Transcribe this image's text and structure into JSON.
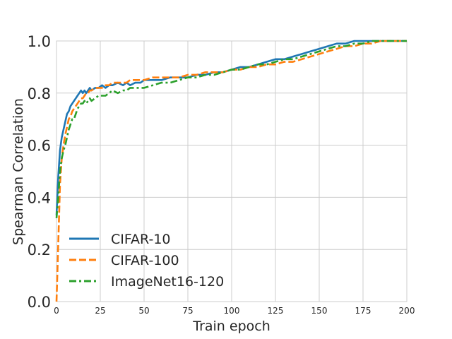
{
  "chart_data": {
    "type": "line",
    "title": "",
    "xlabel": "Train epoch",
    "ylabel": "Spearman Correlation",
    "xlim": [
      0,
      200
    ],
    "ylim": [
      0,
      1.0
    ],
    "x_ticks": [
      "0",
      "25",
      "50",
      "75",
      "100",
      "125",
      "150",
      "175",
      "200"
    ],
    "y_ticks": [
      "0.0",
      "0.2",
      "0.4",
      "0.6",
      "0.8",
      "1.0"
    ],
    "grid": true,
    "legend_position": "lower-left",
    "series": [
      {
        "name": "CIFAR-10",
        "color": "#1f77b4",
        "dash": "solid",
        "points": [
          [
            0,
            0.33
          ],
          [
            1,
            0.48
          ],
          [
            2,
            0.58
          ],
          [
            3,
            0.63
          ],
          [
            4,
            0.66
          ],
          [
            5,
            0.69
          ],
          [
            6,
            0.72
          ],
          [
            7,
            0.73
          ],
          [
            8,
            0.75
          ],
          [
            9,
            0.76
          ],
          [
            10,
            0.77
          ],
          [
            11,
            0.78
          ],
          [
            12,
            0.79
          ],
          [
            13,
            0.8
          ],
          [
            14,
            0.81
          ],
          [
            15,
            0.8
          ],
          [
            16,
            0.81
          ],
          [
            17,
            0.8
          ],
          [
            18,
            0.81
          ],
          [
            19,
            0.82
          ],
          [
            20,
            0.81
          ],
          [
            22,
            0.82
          ],
          [
            24,
            0.82
          ],
          [
            26,
            0.83
          ],
          [
            28,
            0.82
          ],
          [
            30,
            0.83
          ],
          [
            32,
            0.83
          ],
          [
            35,
            0.84
          ],
          [
            38,
            0.83
          ],
          [
            40,
            0.84
          ],
          [
            42,
            0.83
          ],
          [
            45,
            0.84
          ],
          [
            48,
            0.84
          ],
          [
            50,
            0.85
          ],
          [
            55,
            0.85
          ],
          [
            60,
            0.85
          ],
          [
            65,
            0.86
          ],
          [
            70,
            0.86
          ],
          [
            75,
            0.86
          ],
          [
            80,
            0.87
          ],
          [
            85,
            0.87
          ],
          [
            90,
            0.88
          ],
          [
            95,
            0.88
          ],
          [
            100,
            0.89
          ],
          [
            105,
            0.9
          ],
          [
            110,
            0.9
          ],
          [
            115,
            0.91
          ],
          [
            120,
            0.92
          ],
          [
            125,
            0.93
          ],
          [
            130,
            0.93
          ],
          [
            135,
            0.94
          ],
          [
            140,
            0.95
          ],
          [
            145,
            0.96
          ],
          [
            150,
            0.97
          ],
          [
            155,
            0.98
          ],
          [
            160,
            0.99
          ],
          [
            165,
            0.99
          ],
          [
            170,
            1.0
          ],
          [
            175,
            1.0
          ],
          [
            180,
            1.0
          ],
          [
            190,
            1.0
          ],
          [
            200,
            1.0
          ]
        ]
      },
      {
        "name": "CIFAR-100",
        "color": "#ff7f0e",
        "dash": "dashed",
        "points": [
          [
            0,
            0.0
          ],
          [
            1,
            0.22
          ],
          [
            2,
            0.45
          ],
          [
            3,
            0.55
          ],
          [
            4,
            0.6
          ],
          [
            5,
            0.64
          ],
          [
            6,
            0.67
          ],
          [
            7,
            0.7
          ],
          [
            8,
            0.71
          ],
          [
            9,
            0.73
          ],
          [
            10,
            0.74
          ],
          [
            11,
            0.75
          ],
          [
            12,
            0.76
          ],
          [
            13,
            0.77
          ],
          [
            14,
            0.78
          ],
          [
            15,
            0.78
          ],
          [
            16,
            0.79
          ],
          [
            17,
            0.8
          ],
          [
            18,
            0.8
          ],
          [
            19,
            0.81
          ],
          [
            20,
            0.81
          ],
          [
            22,
            0.82
          ],
          [
            24,
            0.82
          ],
          [
            26,
            0.82
          ],
          [
            28,
            0.83
          ],
          [
            30,
            0.83
          ],
          [
            32,
            0.84
          ],
          [
            35,
            0.84
          ],
          [
            38,
            0.84
          ],
          [
            40,
            0.84
          ],
          [
            42,
            0.85
          ],
          [
            45,
            0.85
          ],
          [
            48,
            0.85
          ],
          [
            50,
            0.85
          ],
          [
            55,
            0.86
          ],
          [
            60,
            0.86
          ],
          [
            65,
            0.86
          ],
          [
            70,
            0.86
          ],
          [
            75,
            0.87
          ],
          [
            80,
            0.87
          ],
          [
            85,
            0.88
          ],
          [
            90,
            0.88
          ],
          [
            95,
            0.88
          ],
          [
            100,
            0.89
          ],
          [
            105,
            0.89
          ],
          [
            110,
            0.9
          ],
          [
            115,
            0.9
          ],
          [
            120,
            0.91
          ],
          [
            125,
            0.91
          ],
          [
            130,
            0.92
          ],
          [
            135,
            0.92
          ],
          [
            140,
            0.93
          ],
          [
            145,
            0.94
          ],
          [
            150,
            0.95
          ],
          [
            155,
            0.96
          ],
          [
            160,
            0.97
          ],
          [
            165,
            0.98
          ],
          [
            170,
            0.98
          ],
          [
            175,
            0.99
          ],
          [
            180,
            0.99
          ],
          [
            185,
            1.0
          ],
          [
            190,
            1.0
          ],
          [
            200,
            1.0
          ]
        ]
      },
      {
        "name": "ImageNet16-120",
        "color": "#2ca02c",
        "dash": "dashdot",
        "points": [
          [
            0,
            0.32
          ],
          [
            1,
            0.4
          ],
          [
            2,
            0.5
          ],
          [
            3,
            0.55
          ],
          [
            4,
            0.58
          ],
          [
            5,
            0.6
          ],
          [
            6,
            0.63
          ],
          [
            7,
            0.66
          ],
          [
            8,
            0.68
          ],
          [
            9,
            0.7
          ],
          [
            10,
            0.7
          ],
          [
            11,
            0.72
          ],
          [
            12,
            0.74
          ],
          [
            13,
            0.75
          ],
          [
            14,
            0.76
          ],
          [
            15,
            0.76
          ],
          [
            16,
            0.77
          ],
          [
            17,
            0.76
          ],
          [
            18,
            0.77
          ],
          [
            19,
            0.78
          ],
          [
            20,
            0.77
          ],
          [
            22,
            0.78
          ],
          [
            24,
            0.79
          ],
          [
            26,
            0.79
          ],
          [
            28,
            0.79
          ],
          [
            30,
            0.8
          ],
          [
            32,
            0.81
          ],
          [
            35,
            0.8
          ],
          [
            38,
            0.81
          ],
          [
            40,
            0.81
          ],
          [
            42,
            0.82
          ],
          [
            45,
            0.82
          ],
          [
            48,
            0.82
          ],
          [
            50,
            0.82
          ],
          [
            55,
            0.83
          ],
          [
            60,
            0.84
          ],
          [
            65,
            0.84
          ],
          [
            70,
            0.85
          ],
          [
            75,
            0.86
          ],
          [
            80,
            0.86
          ],
          [
            85,
            0.87
          ],
          [
            90,
            0.87
          ],
          [
            95,
            0.88
          ],
          [
            100,
            0.89
          ],
          [
            105,
            0.89
          ],
          [
            110,
            0.9
          ],
          [
            115,
            0.91
          ],
          [
            120,
            0.91
          ],
          [
            125,
            0.92
          ],
          [
            130,
            0.93
          ],
          [
            135,
            0.93
          ],
          [
            140,
            0.94
          ],
          [
            145,
            0.95
          ],
          [
            150,
            0.96
          ],
          [
            155,
            0.97
          ],
          [
            160,
            0.98
          ],
          [
            165,
            0.98
          ],
          [
            170,
            0.99
          ],
          [
            175,
            0.99
          ],
          [
            180,
            1.0
          ],
          [
            190,
            1.0
          ],
          [
            200,
            1.0
          ]
        ]
      }
    ]
  }
}
